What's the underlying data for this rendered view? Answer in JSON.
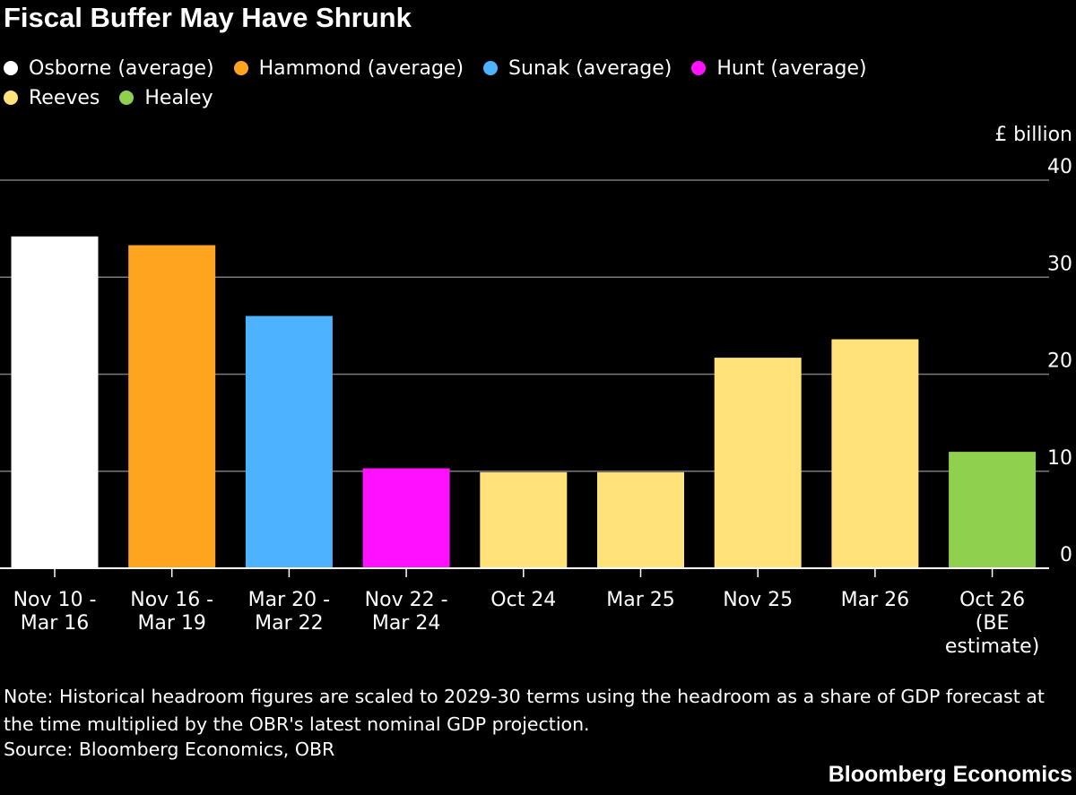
{
  "title": "Fiscal Buffer May Have Shrunk",
  "note": "Note: Historical headroom figures are scaled to 2029-30 terms using the headroom as a share of GDP forecast at the time multiplied by the OBR's latest nominal GDP projection.",
  "source": "Source: Bloomberg Economics, OBR",
  "brand": "Bloomberg Economics",
  "colors": {
    "background": "#000000",
    "grid": "#7a7a7a",
    "text": "#ffffff"
  },
  "legend": [
    {
      "label": "Osborne (average)",
      "color": "#ffffff"
    },
    {
      "label": "Hammond (average)",
      "color": "#ffa41f"
    },
    {
      "label": "Sunak (average)",
      "color": "#4db2ff"
    },
    {
      "label": "Hunt (average)",
      "color": "#ff11ff"
    },
    {
      "label": "Reeves",
      "color": "#ffe27a"
    },
    {
      "label": "Healey",
      "color": "#8fd14f"
    }
  ],
  "chart_data": {
    "type": "bar",
    "title": "Fiscal Buffer May Have Shrunk",
    "ylabel": "£ billion",
    "ylim": [
      0,
      40
    ],
    "yticks": [
      0,
      10,
      20,
      30,
      40
    ],
    "grid": true,
    "legend_position": "top",
    "categories": [
      [
        "Nov 10 -",
        "Mar 16"
      ],
      [
        "Nov 16 -",
        "Mar 19"
      ],
      [
        "Mar 20 -",
        "Mar 22"
      ],
      [
        "Nov 22 -",
        "Mar 24"
      ],
      [
        "Oct 24"
      ],
      [
        "Mar 25"
      ],
      [
        "Nov 25"
      ],
      [
        "Mar 26"
      ],
      [
        "Oct 26",
        "(BE",
        "estimate)"
      ]
    ],
    "values": [
      34.2,
      33.3,
      26.0,
      10.3,
      9.9,
      9.9,
      21.7,
      23.6,
      12.0
    ],
    "bar_series": [
      "Osborne (average)",
      "Hammond (average)",
      "Sunak (average)",
      "Hunt (average)",
      "Reeves",
      "Reeves",
      "Reeves",
      "Reeves",
      "Healey"
    ]
  }
}
